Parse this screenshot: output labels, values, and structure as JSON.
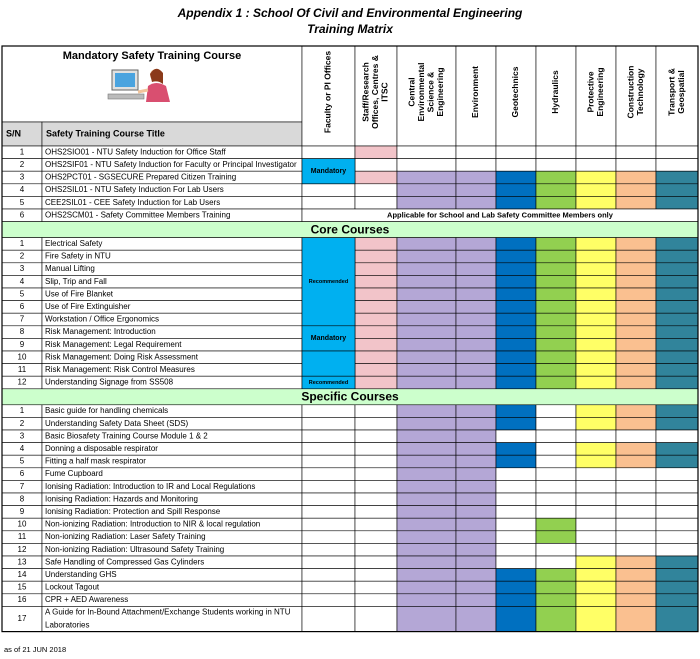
{
  "header": {
    "title": "Appendix 1 : School Of Civil and Environmental Engineering",
    "subtitle": "Training Matrix",
    "left_title": "Mandatory Safety  Training Course",
    "sn_label": "S/N",
    "course_label": "Safety Training Course Title"
  },
  "columns": [
    {
      "lines": [
        "Faculty or PI Offices"
      ],
      "color": "#00b0f0"
    },
    {
      "lines": [
        "Staff/Research",
        "Offices, Centres &",
        "ITSC"
      ],
      "color": "#f2c4c9"
    },
    {
      "lines": [
        "Central",
        "Environmental",
        "Science &",
        "Engineering"
      ],
      "color": "#b4a7d6"
    },
    {
      "lines": [
        "Environment"
      ],
      "color": "#b4a7d6"
    },
    {
      "lines": [
        "Geotechnics"
      ],
      "color": "#0070c0"
    },
    {
      "lines": [
        "Hydraulics"
      ],
      "color": "#92d050"
    },
    {
      "lines": [
        "Protective",
        "Engineering"
      ],
      "color": "#ffff66"
    },
    {
      "lines": [
        "Construction",
        "Technology"
      ],
      "color": "#fac090"
    },
    {
      "lines": [
        "Transport &",
        "Geospatial"
      ],
      "color": "#31849b"
    }
  ],
  "sections": [
    {
      "blocks": [
        {
          "label": "Mandatory",
          "rows": [
            1,
            2
          ]
        }
      ],
      "rows": [
        {
          "sn": "1",
          "title": "OHS2SIO01 - NTU Safety Induction for Office Staff",
          "cells": "010000000"
        },
        {
          "sn": "2",
          "title": "OHS2SIF01 - NTU Safety Induction for Faculty or Principal Investigator",
          "cells": "000000000"
        },
        {
          "sn": "3",
          "title": "OHS2PCT01 - SGSECURE Prepared Citizen Training",
          "cells": "011111111"
        },
        {
          "sn": "4",
          "title": "OHS2SIL01 - NTU Safety Induction For Lab Users",
          "cells": "001111111"
        },
        {
          "sn": "5",
          "title": "CEE2SIL01 - CEE Safety Induction for Lab Users",
          "cells": "001111111"
        },
        {
          "sn": "6",
          "title": "OHS2SCM01 - Safety Committee Members Training",
          "note": "Applicable for School and Lab Safety Committee Members only"
        }
      ]
    },
    {
      "name": "Core Courses",
      "blocks": [
        {
          "label": "Recommended",
          "rows": [
            0,
            6
          ]
        },
        {
          "label": "Mandatory",
          "rows": [
            7,
            8
          ]
        },
        {
          "rows": [
            9,
            10
          ]
        },
        {
          "label": "Recommended",
          "rows": [
            11,
            11
          ]
        }
      ],
      "rows": [
        {
          "sn": "1",
          "title": "Electrical Safety",
          "cells": "011111111"
        },
        {
          "sn": "2",
          "title": "Fire Safety in NTU",
          "cells": "011111111"
        },
        {
          "sn": "3",
          "title": "Manual Lifting",
          "cells": "011111111"
        },
        {
          "sn": "4",
          "title": "Slip, Trip and Fall",
          "cells": "011111111"
        },
        {
          "sn": "5",
          "title": "Use of Fire Blanket",
          "cells": "011111111"
        },
        {
          "sn": "6",
          "title": "Use of Fire Extinguisher",
          "cells": "011111111"
        },
        {
          "sn": "7",
          "title": "Workstation / Office Ergonomics",
          "cells": "011111111"
        },
        {
          "sn": "8",
          "title": "Risk Management: Introduction",
          "cells": "011111111"
        },
        {
          "sn": "9",
          "title": "Risk Management: Legal Requirement",
          "cells": "011111111"
        },
        {
          "sn": "10",
          "title": "Risk Management: Doing Risk Assessment",
          "cells": "011111111"
        },
        {
          "sn": "11",
          "title": "Risk Management: Risk Control Measures",
          "cells": "011111111"
        },
        {
          "sn": "12",
          "title": "Understanding Signage from SS508",
          "cells": "011111111"
        }
      ]
    },
    {
      "name": "Specific Courses",
      "blocks": [],
      "rows": [
        {
          "sn": "1",
          "title": "Basic guide for handling chemicals",
          "cells": "001110111"
        },
        {
          "sn": "2",
          "title": "Understanding Safety Data Sheet (SDS)",
          "cells": "001110111"
        },
        {
          "sn": "3",
          "title": "Basic Biosafety Training Course Module 1 & 2",
          "cells": "001100000"
        },
        {
          "sn": "4",
          "title": "Donning a disposable respirator",
          "cells": "001110111"
        },
        {
          "sn": "5",
          "title": "Fitting a half mask respirator",
          "cells": "001110111"
        },
        {
          "sn": "6",
          "title": "Fume Cupboard",
          "cells": "001100000"
        },
        {
          "sn": "7",
          "title": "Ionising Radiation: Introduction to IR and Local Regulations",
          "cells": "001100000"
        },
        {
          "sn": "8",
          "title": "Ionising Radiation: Hazards and Monitoring",
          "cells": "001100000"
        },
        {
          "sn": "9",
          "title": "Ionising Radiation: Protection and Spill Response",
          "cells": "001100000"
        },
        {
          "sn": "10",
          "title": "Non-ionizing Radiation: Introduction to NIR & local regulation",
          "cells": "001101000"
        },
        {
          "sn": "11",
          "title": "Non-ionizing Radiation: Laser Safety Training",
          "cells": "001101000"
        },
        {
          "sn": "12",
          "title": "Non-ionizing Radiation: Ultrasound Safety Training",
          "cells": "001100000"
        },
        {
          "sn": "13",
          "title": "Safe Handling of Compressed Gas Cylinders",
          "cells": "001100111"
        },
        {
          "sn": "14",
          "title": "Understanding GHS",
          "cells": "001111111"
        },
        {
          "sn": "15",
          "title": "Lockout Tagout",
          "cells": "001111111"
        },
        {
          "sn": "16",
          "title": "CPR + AED Awareness",
          "cells": "001111111"
        },
        {
          "sn": "17",
          "title": "A Guide for In-Bound Attachment/Exchange Students working in NTU Laboratories",
          "cells": "001111111"
        }
      ]
    }
  ],
  "footer": "as of 21 JUN 2018"
}
